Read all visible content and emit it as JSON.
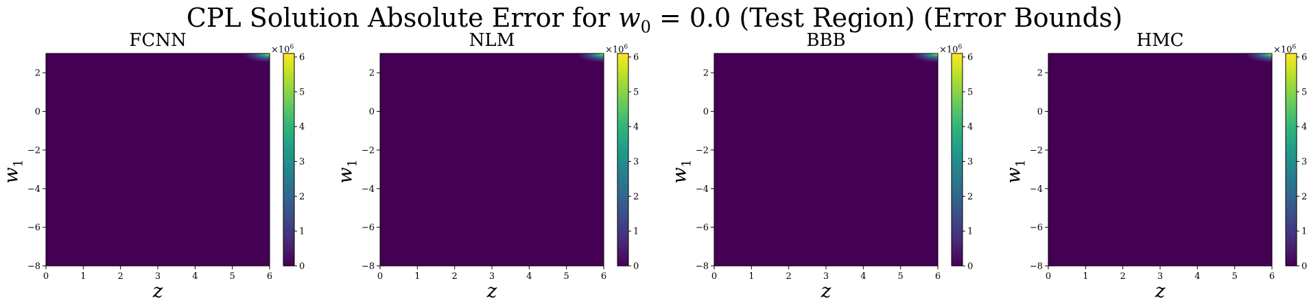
{
  "title": {
    "prefix": "CPL Solution Absolute Error for ",
    "var": "w",
    "sub": "0",
    "suffix": " = 0.0 (Test Region) (Error Bounds)"
  },
  "chart_data": [
    {
      "type": "heatmap",
      "title": "FCNN",
      "xlabel": "z",
      "ylabel": {
        "var": "w",
        "sub": "1"
      },
      "xlim": [
        0,
        6
      ],
      "ylim": [
        -8,
        3
      ],
      "xticks": [
        "0",
        "1",
        "2",
        "3",
        "4",
        "5",
        "6"
      ],
      "yticks": [
        "2",
        "0",
        "−2",
        "−4",
        "−6",
        "−8"
      ],
      "colorbar": {
        "range": [
          0,
          6.1
        ],
        "ticks": [
          "0",
          "1",
          "2",
          "3",
          "4",
          "5",
          "6"
        ],
        "multiplier": "×10",
        "exponent": "6",
        "colormap": "viridis"
      },
      "description_values": {
        "max_error_corner": "top-right",
        "max_value": 6.1,
        "base_value": 0
      }
    },
    {
      "type": "heatmap",
      "title": "NLM",
      "xlabel": "z",
      "ylabel": {
        "var": "w",
        "sub": "1"
      },
      "xlim": [
        0,
        6
      ],
      "ylim": [
        -8,
        3
      ],
      "xticks": [
        "0",
        "1",
        "2",
        "3",
        "4",
        "5",
        "6"
      ],
      "yticks": [
        "2",
        "0",
        "−2",
        "−4",
        "−6",
        "−8"
      ],
      "colorbar": {
        "range": [
          0,
          6.1
        ],
        "ticks": [
          "0",
          "1",
          "2",
          "3",
          "4",
          "5",
          "6"
        ],
        "multiplier": "×10",
        "exponent": "6",
        "colormap": "viridis"
      },
      "description_values": {
        "max_error_corner": "top-right",
        "max_value": 6.1,
        "base_value": 0
      }
    },
    {
      "type": "heatmap",
      "title": "BBB",
      "xlabel": "z",
      "ylabel": {
        "var": "w",
        "sub": "1"
      },
      "xlim": [
        0,
        6
      ],
      "ylim": [
        -8,
        3
      ],
      "xticks": [
        "0",
        "1",
        "2",
        "3",
        "4",
        "5",
        "6"
      ],
      "yticks": [
        "2",
        "0",
        "−2",
        "−4",
        "−6",
        "−8"
      ],
      "colorbar": {
        "range": [
          0,
          6.1
        ],
        "ticks": [
          "0",
          "1",
          "2",
          "3",
          "4",
          "5",
          "6"
        ],
        "multiplier": "×10",
        "exponent": "6",
        "colormap": "viridis"
      },
      "description_values": {
        "max_error_corner": "top-right",
        "max_value": 6.1,
        "base_value": 0
      }
    },
    {
      "type": "heatmap",
      "title": "HMC",
      "xlabel": "z",
      "ylabel": {
        "var": "w",
        "sub": "1"
      },
      "xlim": [
        0,
        6
      ],
      "ylim": [
        -8,
        3
      ],
      "xticks": [
        "0",
        "1",
        "2",
        "3",
        "4",
        "5",
        "6"
      ],
      "yticks": [
        "2",
        "0",
        "−2",
        "−4",
        "−6",
        "−8"
      ],
      "colorbar": {
        "range": [
          0,
          6.1
        ],
        "ticks": [
          "0",
          "1",
          "2",
          "3",
          "4",
          "5",
          "6"
        ],
        "multiplier": "×10",
        "exponent": "6",
        "colormap": "viridis"
      },
      "description_values": {
        "max_error_corner": "top-right",
        "max_value": 6.1,
        "base_value": 0
      }
    }
  ],
  "colors": {
    "viridis_low": "#440154",
    "viridis_mid": "#21918c",
    "viridis_high": "#fde725"
  }
}
